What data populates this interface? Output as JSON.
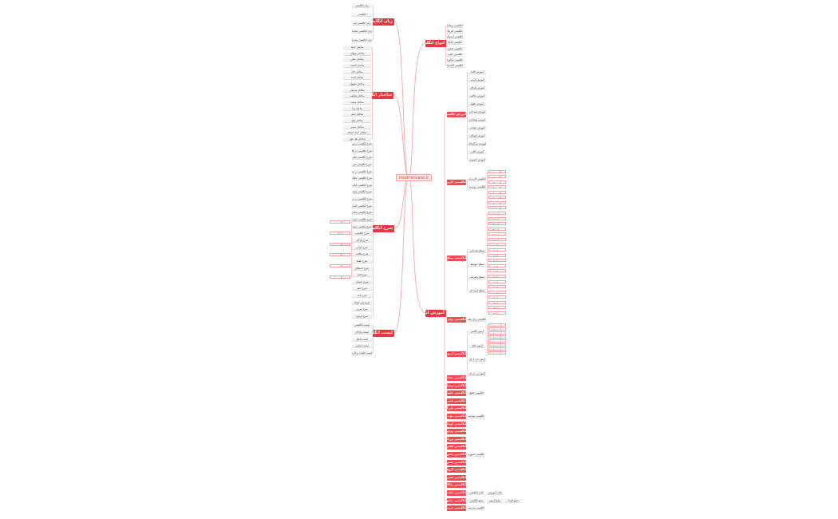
{
  "center": {
    "label": "modirencase.ir"
  },
  "colors": {
    "main": "#e8373f",
    "link": "#f4a6a8",
    "leaf": "#f3f3f3"
  },
  "left_branches": [
    {
      "label": "زبان انگلیسی",
      "children": [
        "زبان انگلیسی",
        "انگلیسی",
        "زبان انگلیسی پایه",
        "زبان انگلیسی مقدماتی",
        "زبان انگلیسی پیشرفته"
      ]
    },
    {
      "label": "ساختار انگلیسی",
      "children": [
        "ساختار جمله",
        "ساختار سوالی",
        "ساختار منفی",
        "ساختار گذشته",
        "ساختار حال",
        "ساختار آینده",
        "ساختار مجهول",
        "ساختار شرطی",
        "ساختار مقایسه",
        "ساختار صفت",
        "ساختار قید",
        "ساختار اسم",
        "ساختار فعل",
        "ساختار ضمیر",
        "ساختار حرف اضافه",
        "ساختار نقل قول"
      ]
    },
    {
      "label": "شرح انگلیسی",
      "children": [
        "شرح انگلیسی درس",
        "شرح انگلیسی در کلاس",
        "شرح انگلیسی فیلم",
        "شرح انگلیسی متن",
        "شرح انگلیسی در تصویر",
        "شرح انگلیسی مقاله",
        "شرح انگلیسی کتاب",
        "شرح انگلیسی واژه",
        "شرح انگلیسی در درس",
        "شرح انگلیسی کامل",
        "شرح انگلیسی ساده",
        "شرح انگلیسی نمونه",
        "شرح انگلیسی جمله",
        "شرح انگلیسی",
        "شرح واژگان",
        "شرح گرامر",
        "شرح مکالمه",
        "شرح تلفظ",
        "شرح اصطلاح",
        "شرح لغت",
        "شرح داستان",
        "شرح شعر",
        "شرح نامه",
        "شرح متن کوتاه",
        "شرح تمرین",
        "شرح آزمون"
      ],
      "extras": [
        "شرح انگلیسی پیشرفته",
        "شرح انگلیسی",
        "شرح انگلیسی مقدماتی",
        "شرح انگلیسی پایه",
        "شرح انگلیسی متوسط",
        "شرح انگلیسی آزمون"
      ]
    },
    {
      "label": "لیست انگلیسی",
      "children": [
        "لیست انگلیسی",
        "لیست واژگان",
        "لیست افعال",
        "لیست اسامی",
        "لیست کلمات پرکاربرد"
      ]
    }
  ],
  "right_branches": [
    {
      "label": "انواع انگلیسی",
      "children": [
        "انگلیسی بریتانیا",
        "انگلیسی آمریکا",
        "انگلیسی استرالیا",
        "انگلیسی کانادا",
        "انگلیسی تجاری",
        "انگلیسی علمی",
        "انگلیسی محاوره",
        "انگلیسی آکادمیک"
      ]
    },
    {
      "label": "آموزش انگلیسی",
      "subs": [
        {
          "label": "آموزش انگلیسی",
          "children": [
            "آموزش الفبا",
            "آموزش گرامر",
            "آموزش واژگان",
            "آموزش مکالمه",
            "آموزش تلفظ",
            "آموزش شنیداری",
            "آموزش نوشتاری",
            "آموزش خواندن",
            "آموزش کودکان",
            "آموزش بزرگسالان",
            "آموزش آنلاین",
            "آموزش حضوری"
          ]
        },
        {
          "label": "انگلیسی کاربردی",
          "children": [
            "انگلیسی کاربردی",
            "انگلیسی روزمره"
          ],
          "grand": [
            "کاربرد ۱",
            "کاربرد ۲",
            "کاربرد ۳",
            "کاربرد ۴",
            "کاربرد ۵",
            "کاربرد ۶",
            "کاربرد ۷",
            "کاربرد ۸"
          ]
        },
        {
          "label": "انگلیسی سطح بندی",
          "children": [
            "سطح مقدماتی",
            "سطح متوسط",
            "سطح پیشرفته",
            "سطح حرفه ای"
          ],
          "grand": [
            "سطح A1",
            "سطح A2",
            "سطح B1",
            "سطح B2",
            "سطح C1",
            "سطح C2",
            "سطح ۱",
            "سطح ۲",
            "سطح ۳",
            "سطح ۴",
            "سطح ۵",
            "سطح ۶",
            "سطح ۷",
            "سطح ۸",
            "سطح ۹",
            "سطح ۱۰",
            "سطح ۱۱",
            "سطح ۱۲",
            "سطح ۱۳",
            "سطح ۱۴"
          ]
        },
        {
          "label": "انگلیسی برای سفر",
          "children": [
            "انگلیسی برای سفر"
          ]
        },
        {
          "label": "انگلیسی آزمون",
          "children": [
            "آزمون آیلتس",
            "آزمون تافل",
            "آزمون جی آر ای",
            "آزمون پی تی ای"
          ],
          "grand": [
            "آزمون ۱",
            "آزمون ۲",
            "آزمون ۳",
            "آزمون ۴",
            "آزمون ۵",
            "آزمون ۶",
            "آزمون ۷",
            "آزمون ۸"
          ]
        },
        {
          "label": "انگلیسی مشاغل",
          "children": []
        },
        {
          "label": "انگلیسی پزشکی",
          "children": []
        },
        {
          "label": "انگلیسی حقوقی",
          "children": [
            "انگلیسی حقوق"
          ]
        },
        {
          "label": "انگلیسی فنی",
          "children": []
        },
        {
          "label": "انگلیسی بازرگانی",
          "children": []
        },
        {
          "label": "انگلیسی مهندسی",
          "children": [
            "انگلیسی مهندسی"
          ]
        },
        {
          "label": "انگلیسی کودکان",
          "children": []
        },
        {
          "label": "انگلیسی نوجوانان",
          "children": []
        },
        {
          "label": "انگلیسی بزرگسالان",
          "children": []
        },
        {
          "label": "انگلیسی آنلاین",
          "children": []
        },
        {
          "label": "انگلیسی حضوری",
          "children": [
            "انگلیسی حضوری"
          ]
        },
        {
          "label": "انگلیسی خصوصی",
          "children": []
        },
        {
          "label": "انگلیسی گروهی",
          "children": []
        },
        {
          "label": "انگلیسی فشرده",
          "children": []
        },
        {
          "label": "انگلیسی رایگان",
          "children": []
        },
        {
          "label": "انگلیسی کتاب",
          "children": [
            "کتاب انگلیسی",
            "کتاب آموزشی"
          ]
        },
        {
          "label": "انگلیسی منابع",
          "children": [
            "منابع انگلیسی",
            "منابع آزمون",
            "منابع کودک"
          ]
        },
        {
          "label": "انگلیسی مدرسه",
          "children": [
            "انگلیسی مدرسه"
          ]
        }
      ]
    }
  ]
}
